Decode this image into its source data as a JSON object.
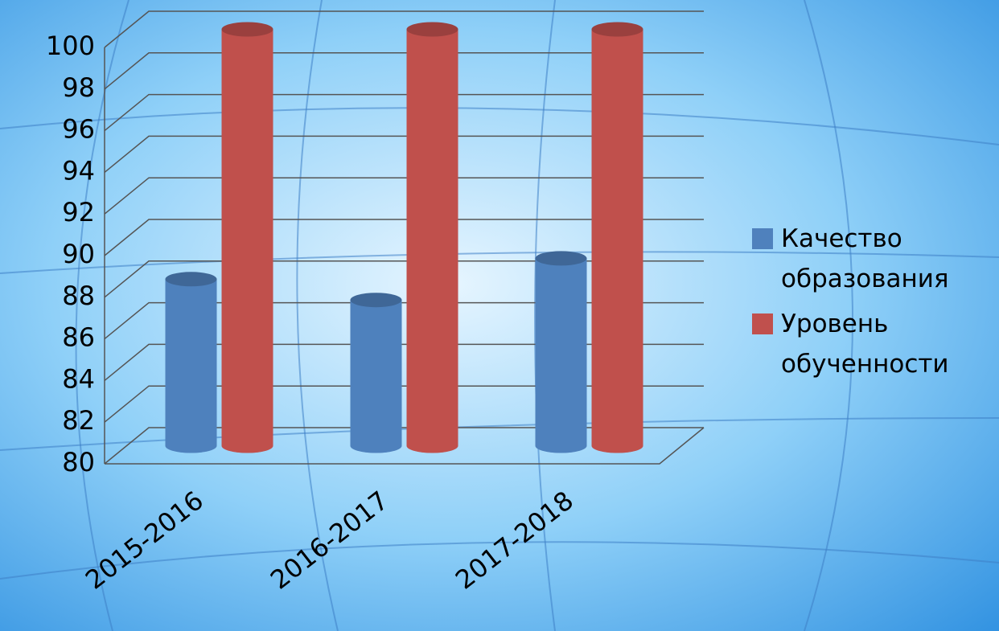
{
  "chart_data": {
    "type": "bar3d",
    "categories": [
      "2015-2016",
      "2016-2017",
      "2017-2018"
    ],
    "series": [
      {
        "name": "Качество образования",
        "color": "#4f81bd",
        "values": [
          88,
          87,
          89
        ]
      },
      {
        "name": "Уровень обученности",
        "color": "#c0504d",
        "values": [
          100,
          100,
          100
        ]
      }
    ],
    "ylim": [
      80,
      100
    ],
    "yticks": [
      80,
      82,
      84,
      86,
      88,
      90,
      92,
      94,
      96,
      98,
      100
    ],
    "grid": true
  }
}
